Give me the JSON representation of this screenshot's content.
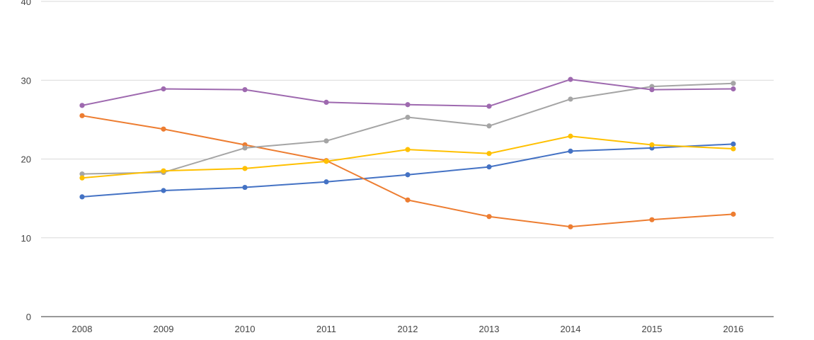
{
  "chart_data": {
    "type": "line",
    "title": "",
    "xlabel": "",
    "ylabel": "",
    "categories": [
      "2008",
      "2009",
      "2010",
      "2011",
      "2012",
      "2013",
      "2014",
      "2015",
      "2016"
    ],
    "ylim": [
      0,
      40
    ],
    "yticks": [
      0,
      10,
      20,
      30,
      40
    ],
    "grid": true,
    "legend": "none",
    "series": [
      {
        "color": "#4472c4",
        "values": [
          15.2,
          16.0,
          16.4,
          17.1,
          18.0,
          19.0,
          21.0,
          21.4,
          21.9
        ]
      },
      {
        "color": "#ed7d31",
        "values": [
          25.5,
          23.8,
          21.8,
          19.8,
          14.8,
          12.7,
          11.4,
          12.3,
          13.0
        ]
      },
      {
        "color": "#a5a5a5",
        "values": [
          18.1,
          18.3,
          21.4,
          22.3,
          25.3,
          24.2,
          27.6,
          29.2,
          29.6
        ]
      },
      {
        "color": "#ffc000",
        "values": [
          17.6,
          18.5,
          18.8,
          19.7,
          21.2,
          20.7,
          22.9,
          21.8,
          21.3
        ]
      },
      {
        "color": "#9e69af",
        "values": [
          26.8,
          28.9,
          28.8,
          27.2,
          26.9,
          26.7,
          30.1,
          28.8,
          28.9
        ]
      }
    ]
  }
}
